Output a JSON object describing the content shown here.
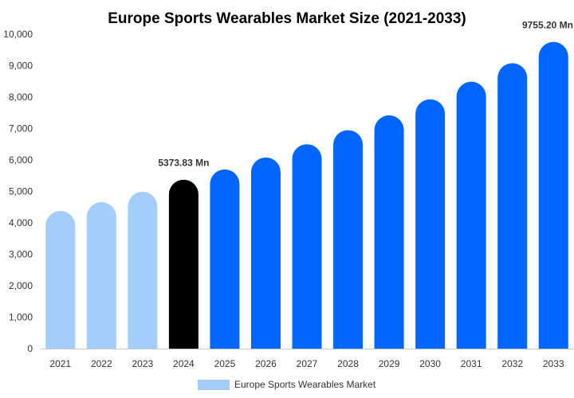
{
  "chart_data": {
    "type": "bar",
    "title": "Europe Sports Wearables Market Size (2021-2033)",
    "xlabel": "",
    "ylabel": "",
    "categories": [
      "2021",
      "2022",
      "2023",
      "2024",
      "2025",
      "2026",
      "2027",
      "2028",
      "2029",
      "2030",
      "2031",
      "2032",
      "2033"
    ],
    "series": [
      {
        "name": "Europe Sports Wearables Market",
        "values": [
          4380,
          4660,
          4990,
          5373.83,
          5700,
          6080,
          6500,
          6950,
          7420,
          7930,
          8490,
          9080,
          9755.2
        ],
        "bar_colors": [
          "#a3cdfb",
          "#a3cdfb",
          "#a3cdfb",
          "#000000",
          "#0066ff",
          "#0066ff",
          "#0066ff",
          "#0066ff",
          "#0066ff",
          "#0066ff",
          "#0066ff",
          "#0066ff",
          "#0066ff"
        ]
      }
    ],
    "ylim": [
      0,
      10000
    ],
    "yticks": [
      0,
      1000,
      2000,
      3000,
      4000,
      5000,
      6000,
      7000,
      8000,
      9000,
      10000
    ],
    "ytick_labels": [
      "0",
      "1,000",
      "2,000",
      "3,000",
      "4,000",
      "5,000",
      "6,000",
      "7,000",
      "8,000",
      "9,000",
      "10,000"
    ],
    "annotations": [
      {
        "category": "2024",
        "text": "5373.83 Mn"
      },
      {
        "category": "2033",
        "text": "9755.20 Mn"
      }
    ],
    "legend": {
      "position": "bottom",
      "label": "Europe Sports Wearables Market",
      "color": "#a3cdfb"
    },
    "grid": false
  }
}
